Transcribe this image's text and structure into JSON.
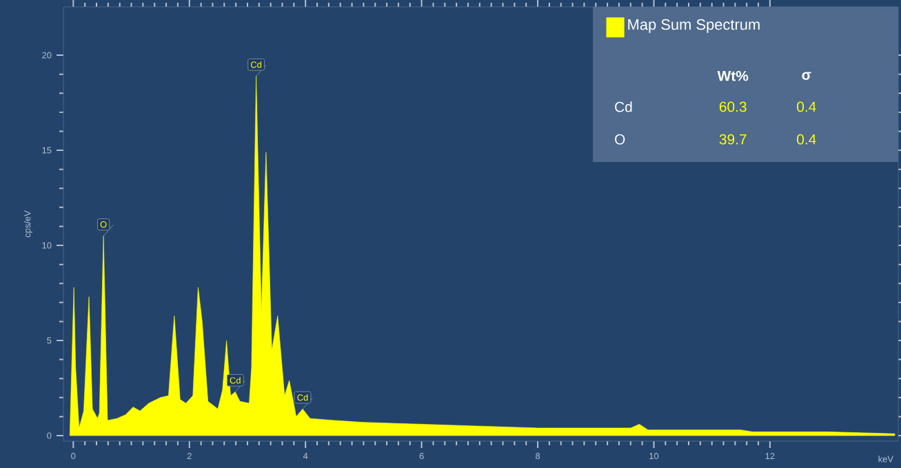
{
  "chart_data": {
    "type": "area",
    "ylabel": "cps/eV",
    "xlabel": "keV",
    "xlim": [
      -0.17,
      14.21
    ],
    "ylim": [
      -0.29,
      22.54
    ],
    "xticks": [
      0,
      2,
      4,
      6,
      8,
      10,
      12
    ],
    "yticks": [
      0,
      5,
      10,
      15,
      20
    ],
    "legend": "top right",
    "grid": false,
    "series": [
      {
        "name": "Map Sum Spectrum",
        "color": "#ffff00",
        "x": [
          -0.06,
          0.01,
          0.04,
          0.1,
          0.18,
          0.27,
          0.33,
          0.42,
          0.45,
          0.52,
          0.59,
          0.75,
          0.9,
          1.03,
          1.15,
          1.3,
          1.5,
          1.64,
          1.74,
          1.84,
          1.94,
          2.06,
          2.15,
          2.22,
          2.32,
          2.49,
          2.57,
          2.64,
          2.71,
          2.79,
          2.87,
          3.03,
          3.07,
          3.15,
          3.24,
          3.32,
          3.42,
          3.52,
          3.64,
          3.72,
          3.84,
          3.95,
          4.08,
          4.5,
          5,
          6,
          7,
          8,
          9,
          9.6,
          9.75,
          9.9,
          10,
          11,
          11.5,
          11.7,
          12,
          13,
          14.15
        ],
        "values": [
          0,
          7.8,
          3.6,
          0.4,
          1.3,
          7.3,
          1.4,
          0.9,
          1.2,
          10.5,
          0.8,
          0.9,
          1.1,
          1.5,
          1.3,
          1.7,
          2.0,
          2.1,
          6.3,
          1.9,
          1.7,
          2.1,
          7.8,
          6.0,
          1.8,
          1.4,
          2.4,
          5.0,
          2.1,
          2.3,
          1.8,
          1.7,
          3.6,
          18.9,
          6.5,
          14.9,
          4.5,
          6.3,
          2.1,
          2.9,
          1.0,
          1.4,
          0.9,
          0.8,
          0.7,
          0.6,
          0.5,
          0.4,
          0.4,
          0.4,
          0.6,
          0.3,
          0.3,
          0.3,
          0.3,
          0.2,
          0.2,
          0.2,
          0.1
        ]
      }
    ],
    "annotations": [
      {
        "text": "O",
        "x": 0.52,
        "y": 10.5
      },
      {
        "text": "Cd",
        "x": 2.79,
        "y": 2.3
      },
      {
        "text": "Cd",
        "x": 3.15,
        "y": 18.9
      },
      {
        "text": "Cd",
        "x": 3.95,
        "y": 1.4
      },
      "Wt%",
      "σ",
      "Cd",
      "60.3",
      "0.4",
      "O",
      "39.7",
      "0.4"
    ]
  }
}
